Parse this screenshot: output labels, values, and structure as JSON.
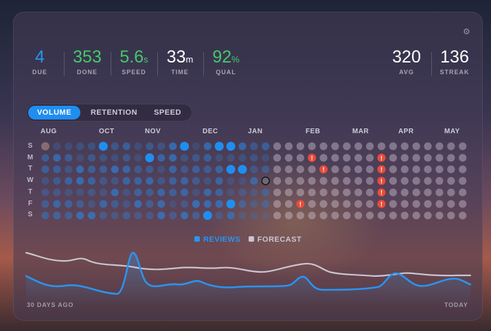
{
  "stats_left": [
    {
      "value": "4",
      "unit": "",
      "label": "DUE",
      "color": "#2a94f0"
    },
    {
      "value": "353",
      "unit": "",
      "label": "DONE",
      "color": "#43c96a"
    },
    {
      "value": "5.6",
      "unit": "s",
      "label": "SPEED",
      "color": "#43c96a"
    },
    {
      "value": "33",
      "unit": "m",
      "label": "TIME",
      "color": "#ffffff"
    },
    {
      "value": "92",
      "unit": "%",
      "label": "QUAL",
      "color": "#43c96a"
    }
  ],
  "stats_right": [
    {
      "value": "320",
      "unit": "",
      "label": "AVG",
      "color": "#ffffff"
    },
    {
      "value": "136",
      "unit": "",
      "label": "STREAK",
      "color": "#ffffff"
    }
  ],
  "tabs": [
    {
      "label": "VOLUME",
      "active": true
    },
    {
      "label": "RETENTION",
      "active": false
    },
    {
      "label": "SPEED",
      "active": false
    }
  ],
  "months": [
    "AUG",
    "OCT",
    "NOV",
    "DEC",
    "JAN",
    "FEB",
    "MAR",
    "APR",
    "MAY"
  ],
  "days": [
    "S",
    "M",
    "T",
    "W",
    "T",
    "F",
    "S"
  ],
  "legend": {
    "reviews": "REVIEWS",
    "forecast": "FORECAST"
  },
  "axis": {
    "start": "30 DAYS AGO",
    "end": "TODAY"
  },
  "colors": {
    "accent": "#1f8ef1",
    "reviews": "#2a94f0",
    "forecast": "#c9c5d2",
    "due": "#e74c3c"
  },
  "icons": {
    "settings": "gear-icon",
    "due_alert": "exclamation-icon"
  }
}
